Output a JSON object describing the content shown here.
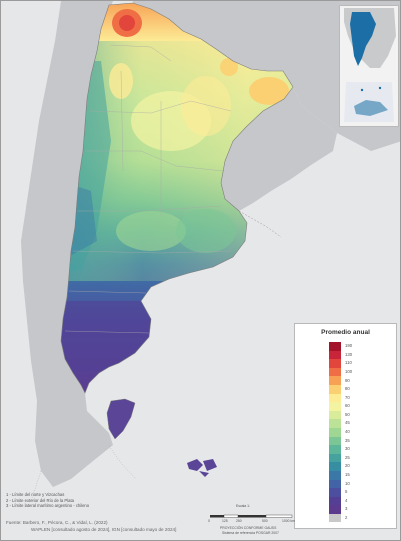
{
  "legend": {
    "title": "Promedio anual",
    "classes": [
      {
        "label": "190",
        "color": "#a3142b"
      },
      {
        "label": "130",
        "color": "#c9253a"
      },
      {
        "label": "110",
        "color": "#e2453b"
      },
      {
        "label": "100",
        "color": "#f06e45"
      },
      {
        "label": "90",
        "color": "#f7a154"
      },
      {
        "label": "80",
        "color": "#fbd072"
      },
      {
        "label": "70",
        "color": "#fdeb96"
      },
      {
        "label": "60",
        "color": "#f3f3a2"
      },
      {
        "label": "50",
        "color": "#d8ec9c"
      },
      {
        "label": "45",
        "color": "#bce297"
      },
      {
        "label": "40",
        "color": "#9fd694"
      },
      {
        "label": "35",
        "color": "#7cc695"
      },
      {
        "label": "30",
        "color": "#5db59a"
      },
      {
        "label": "25",
        "color": "#46a29e"
      },
      {
        "label": "20",
        "color": "#378ea3"
      },
      {
        "label": "15",
        "color": "#3b78a8"
      },
      {
        "label": "10",
        "color": "#4363a7"
      },
      {
        "label": "5",
        "color": "#4c4e9f"
      },
      {
        "label": "4",
        "color": "#533f94"
      },
      {
        "label": "3",
        "color": "#5c3a8e"
      },
      {
        "label": "2",
        "color": "#c9c9c9"
      }
    ]
  },
  "notes": [
    "1 - Límite del norte y Vizcachas",
    "2 - Límite exterior del Río de la Plata",
    "3 - Límite lateral marítimo argentino - chileno"
  ],
  "source": {
    "line1": "Fuente: Barbero, F., Pécora, C., & Vidal, L. (2022)",
    "line2": "WAPLEN [consultado agosto de 2024], IGN [consultado mayo de 2024]"
  },
  "scale": {
    "title": "Escala 1:",
    "ticks": [
      "0",
      "125",
      "250",
      "500",
      "1000 km"
    ],
    "caption1": "PROYECCIÓN CONFORME GAUSS",
    "caption2": "Sistema de referencia POSGAR 2007"
  },
  "colors": {
    "sea": "#e6e7e9",
    "neighbor_land": "#c5c7ca",
    "boundary": "#8a8a8a",
    "inset_highlight": "#1b6fa6"
  }
}
